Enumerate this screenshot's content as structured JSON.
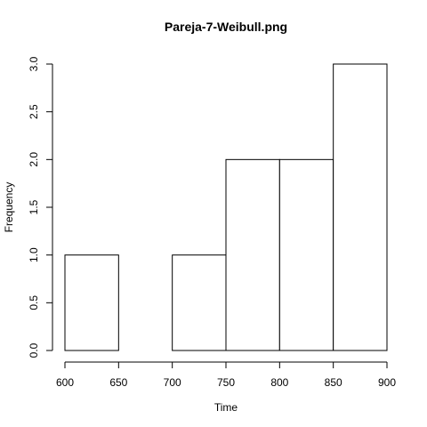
{
  "chart_data": {
    "type": "bar",
    "title": "Pareja-7-Weibull.png",
    "xlabel": "Time",
    "ylabel": "Frequency",
    "bins": [
      {
        "from": 600,
        "to": 650,
        "count": 1
      },
      {
        "from": 650,
        "to": 700,
        "count": 0
      },
      {
        "from": 700,
        "to": 750,
        "count": 1
      },
      {
        "from": 750,
        "to": 800,
        "count": 2
      },
      {
        "from": 800,
        "to": 850,
        "count": 2
      },
      {
        "from": 850,
        "to": 900,
        "count": 3
      }
    ],
    "xlim": [
      600,
      900
    ],
    "ylim": [
      0,
      3
    ],
    "xticks": [
      "600",
      "650",
      "700",
      "750",
      "800",
      "850",
      "900"
    ],
    "yticks": [
      "0.0",
      "0.5",
      "1.0",
      "1.5",
      "2.0",
      "2.5",
      "3.0"
    ],
    "grid": false,
    "legend": "none"
  }
}
